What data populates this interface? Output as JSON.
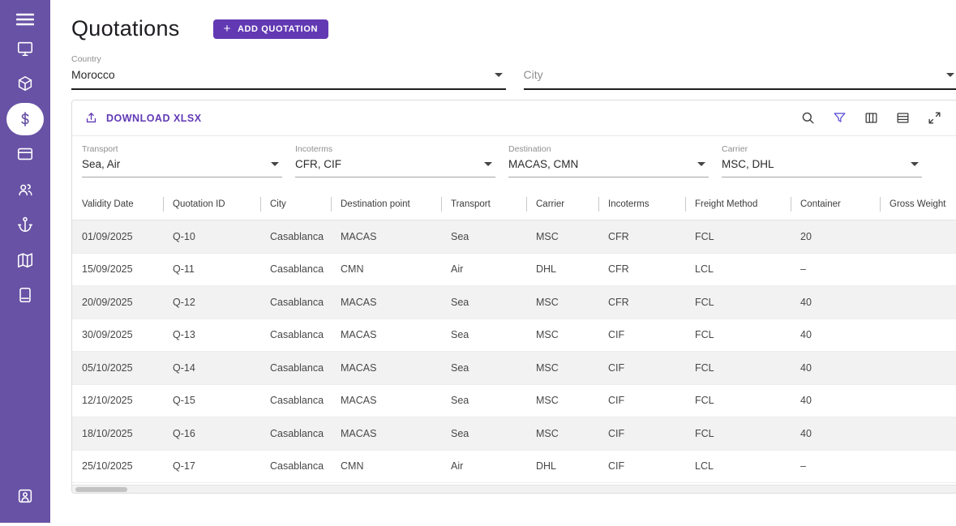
{
  "page": {
    "title": "Quotations",
    "add_button_label": "ADD QUOTATION"
  },
  "sidebar": {
    "icons": [
      "menu",
      "monitor",
      "package",
      "dollar",
      "credit-card",
      "users",
      "anchor",
      "map",
      "book",
      "account"
    ],
    "active_icon": "dollar"
  },
  "top_filters": {
    "country": {
      "label": "Country",
      "value": "Morocco"
    },
    "city": {
      "label": "City",
      "placeholder": "City",
      "value": ""
    }
  },
  "toolbar": {
    "download_label": "DOWNLOAD XLSX",
    "icons": [
      "search-icon",
      "filter-icon",
      "columns-icon",
      "density-icon",
      "fullscreen-icon"
    ]
  },
  "table_filters": [
    {
      "label": "Transport",
      "value": "Sea, Air"
    },
    {
      "label": "Incoterms",
      "value": "CFR, CIF"
    },
    {
      "label": "Destination",
      "value": "MACAS, CMN"
    },
    {
      "label": "Carrier",
      "value": "MSC, DHL"
    }
  ],
  "table": {
    "columns": [
      "Validity Date",
      "Quotation ID",
      "City",
      "Destination point",
      "Transport",
      "Carrier",
      "Incoterms",
      "Freight Method",
      "Container",
      "Gross Weight"
    ],
    "rows": [
      [
        "01/09/2025",
        "Q-10",
        "Casablanca",
        "MACAS",
        "Sea",
        "MSC",
        "CFR",
        "FCL",
        "20",
        ""
      ],
      [
        "15/09/2025",
        "Q-11",
        "Casablanca",
        "CMN",
        "Air",
        "DHL",
        "CFR",
        "LCL",
        "–",
        ""
      ],
      [
        "20/09/2025",
        "Q-12",
        "Casablanca",
        "MACAS",
        "Sea",
        "MSC",
        "CFR",
        "FCL",
        "40",
        ""
      ],
      [
        "30/09/2025",
        "Q-13",
        "Casablanca",
        "MACAS",
        "Sea",
        "MSC",
        "CIF",
        "FCL",
        "40",
        ""
      ],
      [
        "05/10/2025",
        "Q-14",
        "Casablanca",
        "MACAS",
        "Sea",
        "MSC",
        "CIF",
        "FCL",
        "40",
        ""
      ],
      [
        "12/10/2025",
        "Q-15",
        "Casablanca",
        "MACAS",
        "Sea",
        "MSC",
        "CIF",
        "FCL",
        "40",
        ""
      ],
      [
        "18/10/2025",
        "Q-16",
        "Casablanca",
        "MACAS",
        "Sea",
        "MSC",
        "CIF",
        "FCL",
        "40",
        ""
      ],
      [
        "25/10/2025",
        "Q-17",
        "Casablanca",
        "CMN",
        "Air",
        "DHL",
        "CIF",
        "LCL",
        "–",
        ""
      ]
    ]
  },
  "colors": {
    "sidebar": "#6852A5",
    "accent": "#6139B6",
    "button": "#6239B3",
    "filter_icon": "#6056D6",
    "row_alt": "#F2F2F2"
  }
}
